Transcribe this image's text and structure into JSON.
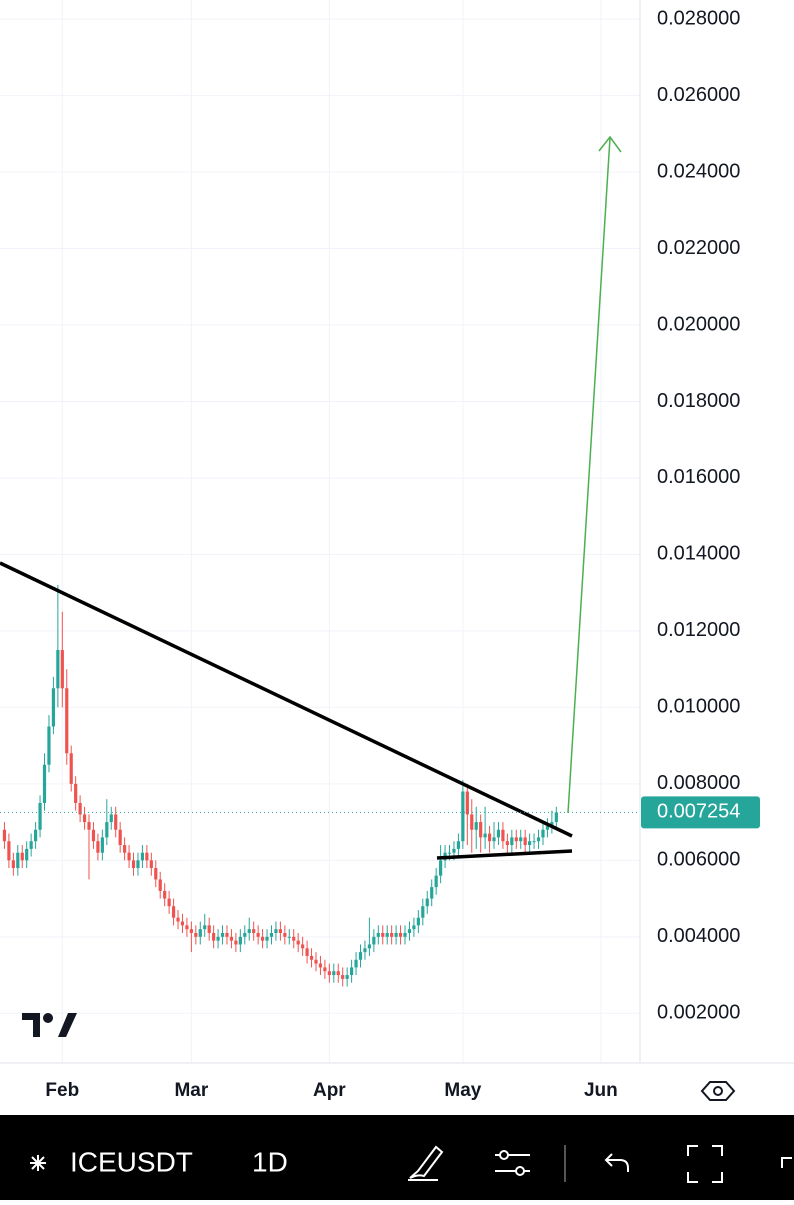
{
  "chart_data": {
    "type": "candlestick",
    "symbol": "ICEUSDT",
    "interval": "1D",
    "up_color": "#26a69a",
    "down_color": "#ef5350",
    "grid": true,
    "x": [
      1,
      2,
      3,
      4,
      5,
      6,
      7,
      8,
      9,
      10,
      11,
      12,
      13,
      14,
      15,
      16,
      17,
      18,
      19,
      20,
      21,
      22,
      23,
      24,
      25,
      26,
      27,
      28,
      29,
      30,
      31,
      32,
      33,
      34,
      35,
      36,
      37,
      38,
      39,
      40,
      41,
      42,
      43,
      44,
      45,
      46,
      47,
      48,
      49,
      50,
      51,
      52,
      53,
      54,
      55,
      56,
      57,
      58,
      59,
      60,
      61,
      62,
      63,
      64,
      65,
      66,
      67,
      68,
      69,
      70,
      71,
      72,
      73,
      74,
      75,
      76,
      77,
      78,
      79,
      80,
      81,
      82,
      83,
      84,
      85,
      86,
      87,
      88,
      89,
      90,
      91,
      92,
      93,
      94,
      95,
      96,
      97,
      98,
      99,
      100,
      101,
      102,
      103,
      104,
      105,
      106,
      107,
      108,
      109,
      110,
      111,
      112,
      113,
      114,
      115,
      116,
      117,
      118,
      119,
      120,
      121,
      122,
      123,
      124,
      125
    ],
    "open": [
      0.0068,
      0.0065,
      0.006,
      0.0058,
      0.0062,
      0.006,
      0.0063,
      0.0065,
      0.0068,
      0.0075,
      0.0085,
      0.0095,
      0.0105,
      0.0115,
      0.0105,
      0.0088,
      0.008,
      0.0075,
      0.0072,
      0.007,
      0.0068,
      0.0065,
      0.0062,
      0.0066,
      0.007,
      0.0072,
      0.0068,
      0.0064,
      0.0062,
      0.006,
      0.0058,
      0.006,
      0.0062,
      0.006,
      0.0058,
      0.0055,
      0.0052,
      0.005,
      0.0048,
      0.0045,
      0.0044,
      0.0043,
      0.0042,
      0.0041,
      0.004,
      0.0042,
      0.0043,
      0.0041,
      0.0039,
      0.004,
      0.0041,
      0.004,
      0.0039,
      0.0038,
      0.004,
      0.0041,
      0.0042,
      0.0041,
      0.004,
      0.0039,
      0.004,
      0.0041,
      0.0042,
      0.0041,
      0.004,
      0.004,
      0.0039,
      0.0038,
      0.0037,
      0.0035,
      0.0034,
      0.0033,
      0.0032,
      0.0031,
      0.003,
      0.0031,
      0.003,
      0.0029,
      0.003,
      0.0032,
      0.0034,
      0.0036,
      0.0037,
      0.0038,
      0.004,
      0.0041,
      0.004,
      0.0041,
      0.004,
      0.0041,
      0.004,
      0.0041,
      0.0042,
      0.0043,
      0.0045,
      0.0048,
      0.005,
      0.0053,
      0.0056,
      0.006,
      0.0062,
      0.0062,
      0.0063,
      0.0065,
      0.0078,
      0.0072,
      0.0068,
      0.007,
      0.0066,
      0.0067,
      0.0065,
      0.0066,
      0.0068,
      0.0065,
      0.0064,
      0.0066,
      0.0065,
      0.0066,
      0.0064,
      0.0065,
      0.0065,
      0.0066,
      0.0068,
      0.0069,
      0.007
    ],
    "high": [
      0.007,
      0.0067,
      0.0062,
      0.0064,
      0.0064,
      0.0065,
      0.0067,
      0.007,
      0.0077,
      0.0088,
      0.0098,
      0.0108,
      0.0132,
      0.0125,
      0.011,
      0.009,
      0.0082,
      0.0077,
      0.0074,
      0.0072,
      0.007,
      0.0067,
      0.0068,
      0.0076,
      0.0074,
      0.0074,
      0.007,
      0.0066,
      0.0064,
      0.0062,
      0.0062,
      0.0064,
      0.0064,
      0.0062,
      0.006,
      0.0057,
      0.0054,
      0.0052,
      0.005,
      0.0047,
      0.0046,
      0.0045,
      0.0044,
      0.0043,
      0.0044,
      0.0046,
      0.0045,
      0.0043,
      0.0042,
      0.0043,
      0.0043,
      0.0042,
      0.0041,
      0.0042,
      0.0043,
      0.0045,
      0.0044,
      0.0043,
      0.0042,
      0.0042,
      0.0043,
      0.0044,
      0.0044,
      0.0043,
      0.0042,
      0.0042,
      0.0041,
      0.004,
      0.0039,
      0.0037,
      0.0036,
      0.0035,
      0.0034,
      0.0033,
      0.0033,
      0.0033,
      0.0032,
      0.0032,
      0.0034,
      0.0036,
      0.0038,
      0.0039,
      0.0045,
      0.0042,
      0.0043,
      0.0043,
      0.0043,
      0.0043,
      0.0043,
      0.0043,
      0.0043,
      0.0044,
      0.0045,
      0.0047,
      0.005,
      0.0052,
      0.0055,
      0.0058,
      0.0064,
      0.0064,
      0.0064,
      0.0065,
      0.0067,
      0.0081,
      0.008,
      0.0076,
      0.0074,
      0.0072,
      0.0074,
      0.0069,
      0.007,
      0.007,
      0.007,
      0.0067,
      0.0068,
      0.0068,
      0.0068,
      0.0068,
      0.0067,
      0.0067,
      0.0068,
      0.007,
      0.0071,
      0.0073,
      0.0074
    ],
    "low": [
      0.0063,
      0.0058,
      0.0056,
      0.0056,
      0.0058,
      0.0058,
      0.0061,
      0.0063,
      0.0066,
      0.0073,
      0.0083,
      0.0093,
      0.01,
      0.01,
      0.0085,
      0.0078,
      0.0073,
      0.007,
      0.0068,
      0.0055,
      0.0063,
      0.006,
      0.006,
      0.0064,
      0.0068,
      0.0066,
      0.0062,
      0.006,
      0.0058,
      0.0056,
      0.0056,
      0.0058,
      0.0058,
      0.0056,
      0.0053,
      0.005,
      0.0048,
      0.0046,
      0.0043,
      0.0042,
      0.0041,
      0.004,
      0.0036,
      0.0038,
      0.0038,
      0.004,
      0.0039,
      0.0037,
      0.0037,
      0.0038,
      0.0038,
      0.0037,
      0.0036,
      0.0036,
      0.0038,
      0.0039,
      0.0039,
      0.0038,
      0.0037,
      0.0037,
      0.0038,
      0.0039,
      0.0039,
      0.0038,
      0.0038,
      0.0037,
      0.0036,
      0.0035,
      0.0033,
      0.0032,
      0.0031,
      0.003,
      0.0029,
      0.0028,
      0.0028,
      0.0028,
      0.0027,
      0.0027,
      0.0028,
      0.003,
      0.0032,
      0.0034,
      0.0035,
      0.0036,
      0.0038,
      0.0038,
      0.0038,
      0.0038,
      0.0038,
      0.0038,
      0.0038,
      0.0039,
      0.004,
      0.0041,
      0.0043,
      0.0046,
      0.0048,
      0.0051,
      0.0054,
      0.0058,
      0.006,
      0.006,
      0.0061,
      0.0063,
      0.0064,
      0.0062,
      0.0063,
      0.0062,
      0.0063,
      0.0062,
      0.0063,
      0.0064,
      0.0063,
      0.0062,
      0.0062,
      0.0063,
      0.0063,
      0.0062,
      0.0062,
      0.0063,
      0.0063,
      0.0064,
      0.0066,
      0.0067,
      0.0068
    ],
    "close": [
      0.0065,
      0.006,
      0.0058,
      0.0062,
      0.006,
      0.0063,
      0.0065,
      0.0068,
      0.0075,
      0.0085,
      0.0095,
      0.0105,
      0.0115,
      0.0105,
      0.0088,
      0.008,
      0.0075,
      0.0072,
      0.007,
      0.0068,
      0.0065,
      0.0062,
      0.0066,
      0.007,
      0.0072,
      0.0068,
      0.0064,
      0.0062,
      0.006,
      0.0058,
      0.006,
      0.0062,
      0.006,
      0.0058,
      0.0055,
      0.0052,
      0.005,
      0.0048,
      0.0045,
      0.0044,
      0.0043,
      0.0042,
      0.0041,
      0.004,
      0.0042,
      0.0043,
      0.0041,
      0.0039,
      0.004,
      0.0041,
      0.004,
      0.0039,
      0.0038,
      0.004,
      0.0041,
      0.0042,
      0.0041,
      0.004,
      0.0039,
      0.004,
      0.0041,
      0.0042,
      0.0041,
      0.004,
      0.004,
      0.0039,
      0.0038,
      0.0037,
      0.0035,
      0.0034,
      0.0033,
      0.0032,
      0.0031,
      0.003,
      0.0031,
      0.003,
      0.0029,
      0.003,
      0.0032,
      0.0034,
      0.0036,
      0.0037,
      0.0038,
      0.004,
      0.0041,
      0.004,
      0.0041,
      0.004,
      0.0041,
      0.004,
      0.0041,
      0.0042,
      0.0043,
      0.0045,
      0.0048,
      0.005,
      0.0053,
      0.0056,
      0.006,
      0.0062,
      0.0062,
      0.0063,
      0.0065,
      0.0078,
      0.0072,
      0.0068,
      0.007,
      0.0066,
      0.0067,
      0.0065,
      0.0066,
      0.0068,
      0.0065,
      0.0064,
      0.0066,
      0.0065,
      0.0066,
      0.0064,
      0.0065,
      0.0065,
      0.0066,
      0.0068,
      0.0069,
      0.007,
      0.007254
    ],
    "xlim": [
      0,
      143.8
    ],
    "xticks": [
      {
        "value": 14,
        "label": "Feb"
      },
      {
        "value": 43,
        "label": "Mar"
      },
      {
        "value": 74,
        "label": "Apr"
      },
      {
        "value": 104,
        "label": "May"
      },
      {
        "value": 135,
        "label": "Jun"
      }
    ],
    "ylim": [
      0.0007,
      0.0285
    ],
    "yticks": [
      {
        "value": 0.002,
        "label": "0.002000"
      },
      {
        "value": 0.004,
        "label": "0.004000"
      },
      {
        "value": 0.006,
        "label": "0.006000"
      },
      {
        "value": 0.008,
        "label": "0.008000"
      },
      {
        "value": 0.01,
        "label": "0.010000"
      },
      {
        "value": 0.012,
        "label": "0.012000"
      },
      {
        "value": 0.014,
        "label": "0.014000"
      },
      {
        "value": 0.016,
        "label": "0.016000"
      },
      {
        "value": 0.018,
        "label": "0.018000"
      },
      {
        "value": 0.02,
        "label": "0.020000"
      },
      {
        "value": 0.022,
        "label": "0.022000"
      },
      {
        "value": 0.024,
        "label": "0.024000"
      },
      {
        "value": 0.026,
        "label": "0.026000"
      },
      {
        "value": 0.028,
        "label": "0.028000"
      }
    ]
  }
}
